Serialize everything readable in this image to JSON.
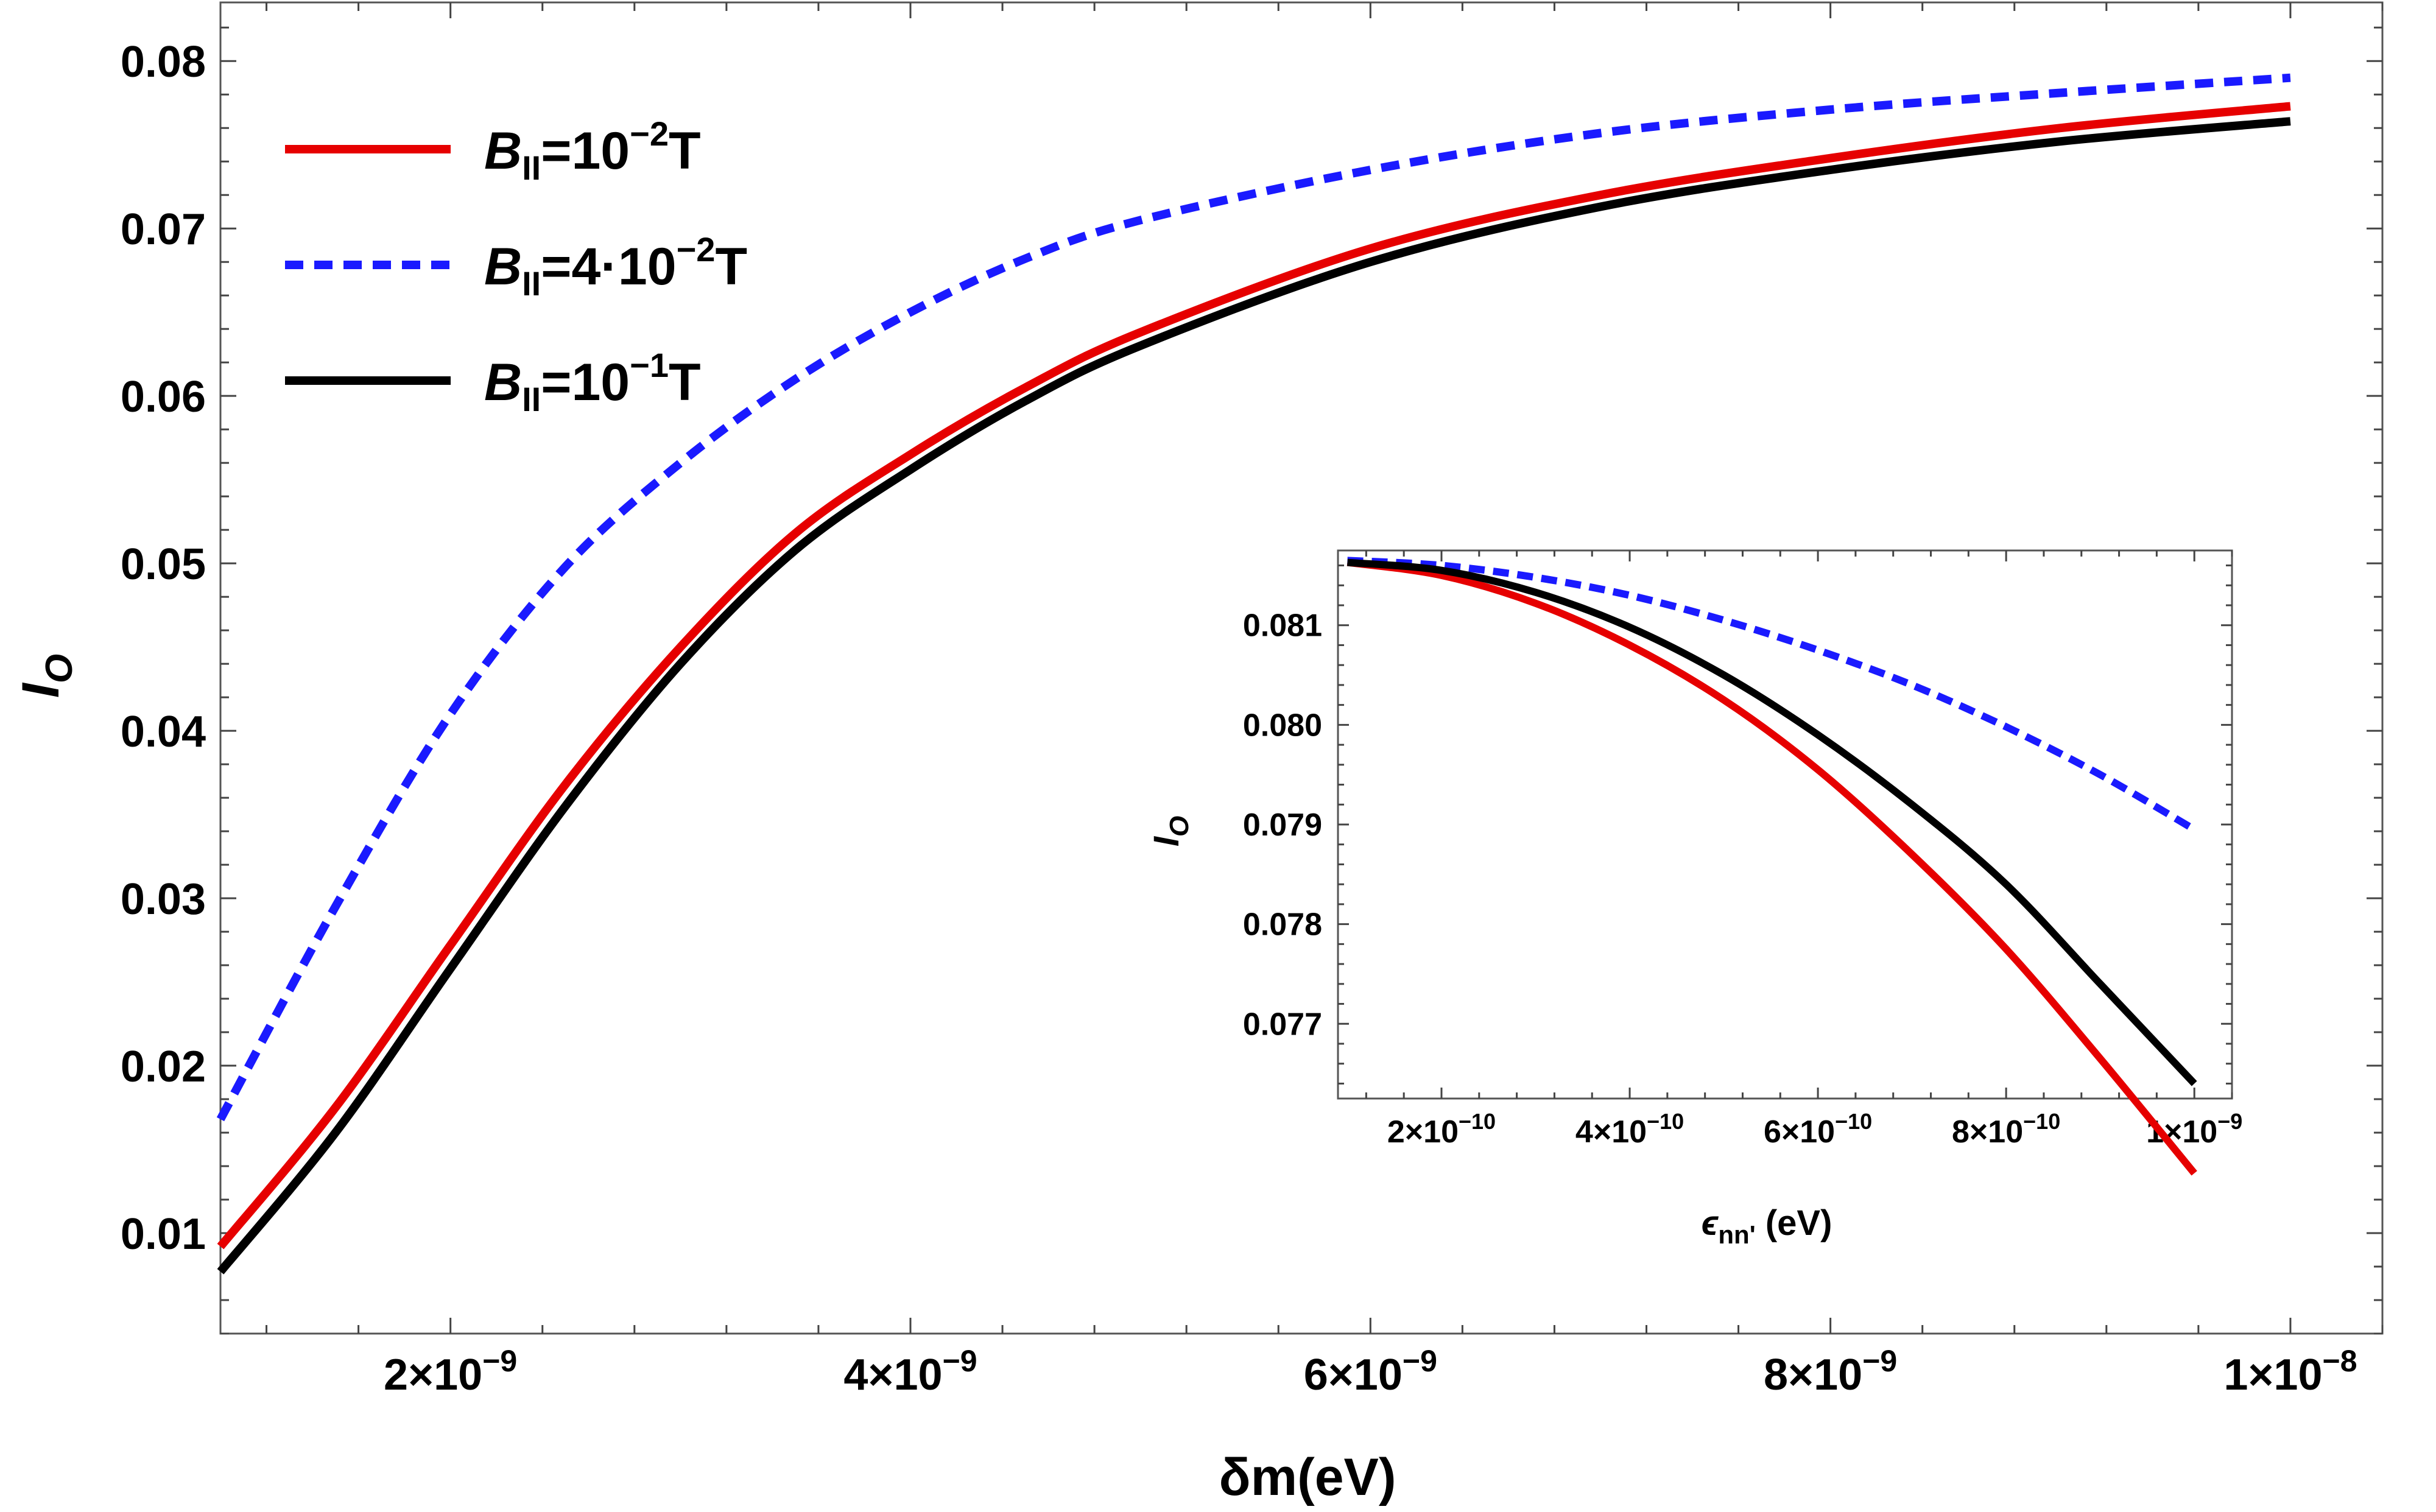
{
  "chart_data": [
    {
      "type": "line",
      "id": "main",
      "xlabel": "δm(eV)",
      "ylabel": "I",
      "ylabel_sub": "O",
      "xlim": [
        1e-09,
        1.04e-08
      ],
      "ylim": [
        0.004,
        0.0835
      ],
      "xticks": [
        {
          "value": 2e-09,
          "mant": "2",
          "exp": "-9"
        },
        {
          "value": 4e-09,
          "mant": "4",
          "exp": "-9"
        },
        {
          "value": 6e-09,
          "mant": "6",
          "exp": "-9"
        },
        {
          "value": 8e-09,
          "mant": "8",
          "exp": "-9"
        },
        {
          "value": 1e-08,
          "mant": "1",
          "exp": "-8"
        }
      ],
      "yticks": [
        {
          "value": 0.01,
          "label": "0.01"
        },
        {
          "value": 0.02,
          "label": "0.02"
        },
        {
          "value": 0.03,
          "label": "0.03"
        },
        {
          "value": 0.04,
          "label": "0.04"
        },
        {
          "value": 0.05,
          "label": "0.05"
        },
        {
          "value": 0.06,
          "label": "0.06"
        },
        {
          "value": 0.07,
          "label": "0.07"
        },
        {
          "value": 0.08,
          "label": "0.08"
        }
      ],
      "x": [
        1e-09,
        1.5e-09,
        2e-09,
        2.5e-09,
        3e-09,
        3.5e-09,
        4e-09,
        4.5e-09,
        5e-09,
        6e-09,
        7e-09,
        8e-09,
        9e-09,
        1e-08
      ],
      "series": [
        {
          "name": "B_II=10^-2 T",
          "label_pre": "B",
          "label_sub": "II",
          "label_mid": "=10",
          "label_sup": "−2",
          "label_post": "T",
          "color": "#e60000",
          "dash": "solid",
          "values": [
            0.0092,
            0.0175,
            0.0272,
            0.0368,
            0.045,
            0.0518,
            0.0565,
            0.0605,
            0.0638,
            0.0688,
            0.072,
            0.0742,
            0.076,
            0.0773
          ]
        },
        {
          "name": "B_II=4·10^-2 T",
          "label_pre": "B",
          "label_sub": "II",
          "label_mid": "=4·10",
          "label_sup": "−2",
          "label_post": "T",
          "color": "#1a1aff",
          "dash": "dashed",
          "values": [
            0.0168,
            0.0295,
            0.041,
            0.0498,
            0.056,
            0.061,
            0.065,
            0.0682,
            0.0705,
            0.0735,
            0.0757,
            0.0771,
            0.0781,
            0.079
          ]
        },
        {
          "name": "B_II=10^-1 T",
          "label_pre": "B",
          "label_sub": "II",
          "label_mid": "=10",
          "label_sup": "−1",
          "label_post": "T",
          "color": "#000000",
          "dash": "solid",
          "values": [
            0.0077,
            0.016,
            0.0258,
            0.0355,
            0.044,
            0.0508,
            0.0556,
            0.0597,
            0.063,
            0.068,
            0.0713,
            0.0735,
            0.0752,
            0.0764
          ]
        }
      ],
      "legend": "top-left"
    },
    {
      "type": "line",
      "id": "inset",
      "xlabel_pre": "ϵ",
      "xlabel_sub": "nn'",
      "xlabel_post": " (eV)",
      "ylabel": "I",
      "ylabel_sub": "O",
      "xlim": [
        9e-11,
        1.04e-09
      ],
      "ylim": [
        0.07625,
        0.08175
      ],
      "xticks": [
        {
          "value": 2e-10,
          "mant": "2",
          "exp": "-10"
        },
        {
          "value": 4e-10,
          "mant": "4",
          "exp": "-10"
        },
        {
          "value": 6e-10,
          "mant": "6",
          "exp": "-10"
        },
        {
          "value": 8e-10,
          "mant": "8",
          "exp": "-10"
        },
        {
          "value": 1e-09,
          "mant": "1",
          "exp": "-9"
        }
      ],
      "yticks": [
        {
          "value": 0.077,
          "label": "0.077"
        },
        {
          "value": 0.078,
          "label": "0.078"
        },
        {
          "value": 0.079,
          "label": "0.079"
        },
        {
          "value": 0.08,
          "label": "0.080"
        },
        {
          "value": 0.081,
          "label": "0.081"
        }
      ],
      "x": [
        1e-10,
        2e-10,
        3e-10,
        4e-10,
        5e-10,
        6e-10,
        7e-10,
        8e-10,
        9e-10,
        1e-09
      ],
      "series": [
        {
          "name": "B_II=10^-2 T",
          "color": "#e60000",
          "dash": "solid",
          "values": [
            0.08163,
            0.0815,
            0.08122,
            0.0808,
            0.08025,
            0.07955,
            0.0787,
            0.07775,
            0.07665,
            0.0755
          ]
        },
        {
          "name": "B_II=4·10^-2 T",
          "color": "#1a1aff",
          "dash": "dashed",
          "values": [
            0.08165,
            0.0816,
            0.08148,
            0.0813,
            0.08105,
            0.08075,
            0.0804,
            0.07998,
            0.0795,
            0.07895
          ]
        },
        {
          "name": "B_II=10^-1 T",
          "color": "#000000",
          "dash": "solid",
          "values": [
            0.08163,
            0.08155,
            0.08133,
            0.08098,
            0.0805,
            0.0799,
            0.0792,
            0.0784,
            0.0774,
            0.0764
          ]
        }
      ]
    }
  ]
}
